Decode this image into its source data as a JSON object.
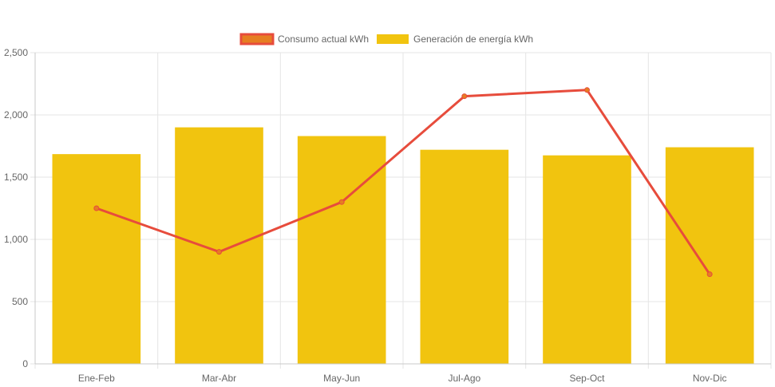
{
  "chart_data": {
    "type": "bar",
    "categories": [
      "Ene-Feb",
      "Mar-Abr",
      "May-Jun",
      "Jul-Ago",
      "Sep-Oct",
      "Nov-Dic"
    ],
    "series": [
      {
        "name": "Consumo actual kWh",
        "type": "line",
        "values": [
          1250,
          900,
          1300,
          2150,
          2200,
          720
        ],
        "color": "#e74c3c",
        "marker_color": "#e67e22"
      },
      {
        "name": "Generación de energía kWh",
        "type": "bar",
        "values": [
          1685,
          1900,
          1830,
          1720,
          1675,
          1740
        ],
        "color": "#f1c40f"
      }
    ],
    "ylim": [
      0,
      2500
    ],
    "yticks": [
      0,
      500,
      1000,
      1500,
      2000,
      2500
    ],
    "ytick_labels": [
      "0",
      "500",
      "1,000",
      "1,500",
      "2,000",
      "2,500"
    ],
    "grid": true,
    "legend_position": "top-center"
  }
}
